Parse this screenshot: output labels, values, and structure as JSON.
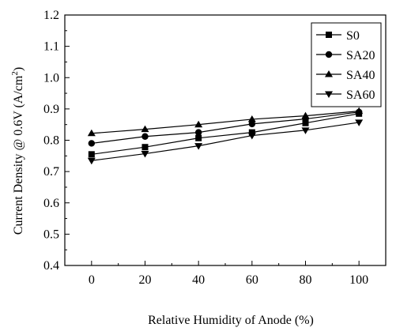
{
  "chart_data": {
    "type": "line",
    "title": "",
    "xlabel": "Relative Humidity of Anode (%)",
    "ylabel_main": "Current Density @ 0.6V (A/cm",
    "ylabel_sup": "2",
    "ylabel_close": ")",
    "xlim": [
      -10,
      110
    ],
    "ylim": [
      0.4,
      1.2
    ],
    "x_ticks": [
      0,
      20,
      40,
      60,
      80,
      100
    ],
    "x_tick_labels": [
      "0",
      "20",
      "40",
      "60",
      "80",
      "100"
    ],
    "y_ticks": [
      0.4,
      0.5,
      0.6,
      0.7,
      0.8,
      0.9,
      1.0,
      1.1,
      1.2
    ],
    "y_tick_labels": [
      "0.4",
      "0.5",
      "0.6",
      "0.7",
      "0.8",
      "0.9",
      "1.0",
      "1.1",
      "1.2"
    ],
    "grid": false,
    "legend_position": "top-right",
    "x": [
      0,
      20,
      40,
      60,
      80,
      100
    ],
    "series": [
      {
        "name": "S0",
        "marker": "square",
        "values": [
          0.755,
          0.778,
          0.807,
          0.825,
          0.855,
          0.885
        ]
      },
      {
        "name": "SA20",
        "marker": "circle",
        "values": [
          0.79,
          0.812,
          0.825,
          0.852,
          0.868,
          0.89
        ]
      },
      {
        "name": "SA40",
        "marker": "triangle-up",
        "values": [
          0.822,
          0.835,
          0.85,
          0.867,
          0.878,
          0.893
        ]
      },
      {
        "name": "SA60",
        "marker": "triangle-down",
        "values": [
          0.735,
          0.757,
          0.782,
          0.815,
          0.832,
          0.857
        ]
      }
    ]
  }
}
